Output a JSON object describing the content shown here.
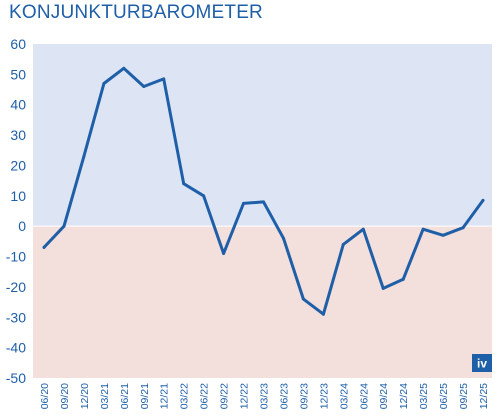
{
  "chart_data": {
    "type": "line",
    "title": "KONJUNKTURBAROMETER",
    "x": [
      "06/20",
      "09/20",
      "12/20",
      "03/21",
      "06/21",
      "09/21",
      "12/21",
      "03/22",
      "06/22",
      "09/22",
      "12/22",
      "03/23",
      "06/23",
      "09/23",
      "12/23",
      "03/24",
      "06/24",
      "09/24",
      "12/24",
      "03/25",
      "06/25",
      "09/25",
      "12/25"
    ],
    "series": [
      {
        "values": [
          -7,
          0,
          23,
          47,
          52,
          46,
          48.5,
          14,
          10,
          -9,
          7.5,
          8,
          -4,
          -24,
          -29,
          -6,
          -1,
          -20.5,
          -17.5,
          -1,
          -3,
          -0.5,
          8.5
        ]
      }
    ],
    "ylim": [
      -50,
      60
    ],
    "yticks": [
      -50,
      -40,
      -30,
      -20,
      -10,
      0,
      10,
      20,
      30,
      40,
      50,
      60
    ],
    "ytick_labels": [
      "-50",
      "-40",
      "-30",
      "-20",
      "-10",
      "0",
      "10",
      "20",
      "30",
      "40",
      "50",
      "60"
    ],
    "grid": false,
    "background_positive": "#dde5f5",
    "background_negative": "#f3dfdb",
    "line_color": "#1f5fa8",
    "logo_text": "iv"
  }
}
